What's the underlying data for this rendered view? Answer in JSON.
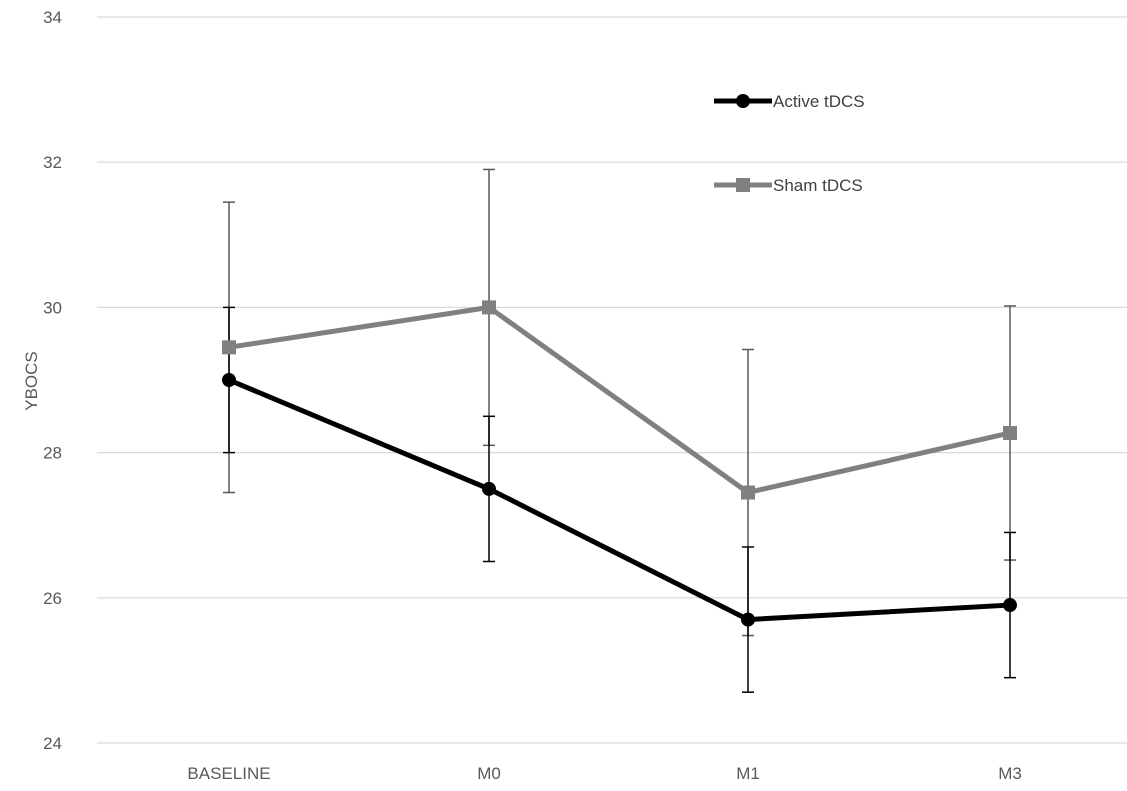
{
  "chart_data": {
    "type": "line",
    "title": "",
    "xlabel": "",
    "ylabel": "YBOCS",
    "categories": [
      "BASELINE",
      "M0",
      "M1",
      "M3"
    ],
    "ylim": [
      24,
      34
    ],
    "yticks": [
      24,
      26,
      28,
      30,
      32,
      34
    ],
    "grid": true,
    "legend_position": "top-right",
    "series": [
      {
        "name": "Active tDCS",
        "values": [
          29.0,
          27.5,
          25.7,
          25.9
        ],
        "error": [
          1.0,
          1.0,
          1.0,
          1.0
        ],
        "color": "#000000",
        "marker": "circle"
      },
      {
        "name": "Sham tDCS",
        "values": [
          29.45,
          30.0,
          27.45,
          28.27
        ],
        "error": [
          2.0,
          1.9,
          1.97,
          1.75
        ],
        "color": "#808080",
        "marker": "square"
      }
    ]
  }
}
